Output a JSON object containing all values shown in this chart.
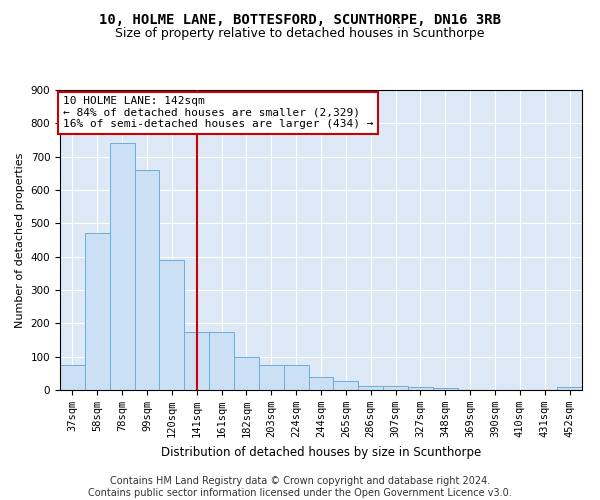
{
  "title1": "10, HOLME LANE, BOTTESFORD, SCUNTHORPE, DN16 3RB",
  "title2": "Size of property relative to detached houses in Scunthorpe",
  "xlabel": "Distribution of detached houses by size in Scunthorpe",
  "ylabel": "Number of detached properties",
  "categories": [
    "37sqm",
    "58sqm",
    "78sqm",
    "99sqm",
    "120sqm",
    "141sqm",
    "161sqm",
    "182sqm",
    "203sqm",
    "224sqm",
    "244sqm",
    "265sqm",
    "286sqm",
    "307sqm",
    "327sqm",
    "348sqm",
    "369sqm",
    "390sqm",
    "410sqm",
    "431sqm",
    "452sqm"
  ],
  "values": [
    75,
    470,
    740,
    660,
    390,
    175,
    175,
    100,
    75,
    75,
    40,
    28,
    12,
    12,
    8,
    5,
    0,
    0,
    0,
    0,
    8
  ],
  "bar_color": "#cce0f5",
  "bar_edge_color": "#6baed6",
  "vline_x": 5,
  "vline_color": "#cc0000",
  "annotation_text": "10 HOLME LANE: 142sqm\n← 84% of detached houses are smaller (2,329)\n16% of semi-detached houses are larger (434) →",
  "annotation_box_color": "white",
  "annotation_box_edge": "#cc0000",
  "ylim": [
    0,
    900
  ],
  "yticks": [
    0,
    100,
    200,
    300,
    400,
    500,
    600,
    700,
    800,
    900
  ],
  "footer1": "Contains HM Land Registry data © Crown copyright and database right 2024.",
  "footer2": "Contains public sector information licensed under the Open Government Licence v3.0.",
  "bg_color": "#dce8f5",
  "title1_fontsize": 10,
  "title2_fontsize": 9,
  "xlabel_fontsize": 8.5,
  "ylabel_fontsize": 8,
  "tick_fontsize": 7.5,
  "annotation_fontsize": 8,
  "footer_fontsize": 7
}
